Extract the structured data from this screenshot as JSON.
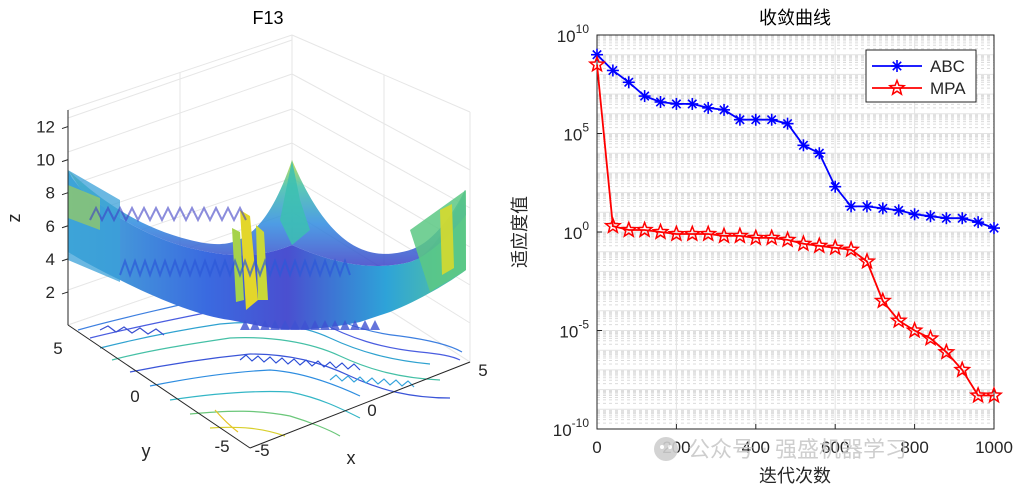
{
  "watermark": "公众号 · 强盛机器学习",
  "chart_data": [
    {
      "type": "surface3d",
      "title": "F13",
      "xlabel": "x",
      "ylabel": "y",
      "zlabel": "z",
      "x_ticks": [
        "-5",
        "0",
        "5"
      ],
      "y_ticks": [
        "5",
        "0",
        "-5"
      ],
      "z_ticks": [
        "2",
        "4",
        "6",
        "8",
        "10",
        "12"
      ],
      "xlim": [
        -5,
        5
      ],
      "ylim": [
        -5,
        5
      ],
      "zlim": [
        0,
        13
      ],
      "colormap": "parula",
      "contour_projection": true
    },
    {
      "type": "line",
      "title": "收敛曲线",
      "xlabel": "迭代次数",
      "ylabel": "适应度值",
      "xlim": [
        0,
        1000
      ],
      "ylim_log10": [
        -10,
        10
      ],
      "x_ticks": [
        "0",
        "200",
        "400",
        "600",
        "800",
        "1000"
      ],
      "y_ticks": [
        {
          "exp": 10,
          "label": "10",
          "sup": "10"
        },
        {
          "exp": 5,
          "label": "10",
          "sup": "5"
        },
        {
          "exp": 0,
          "label": "10",
          "sup": "0"
        },
        {
          "exp": -5,
          "label": "10",
          "sup": "-5"
        },
        {
          "exp": -10,
          "label": "10",
          "sup": "-10"
        }
      ],
      "yscale": "log",
      "legend_position": "top-right",
      "x": [
        0,
        40,
        80,
        120,
        160,
        200,
        240,
        280,
        320,
        360,
        400,
        440,
        480,
        520,
        560,
        600,
        640,
        680,
        720,
        760,
        800,
        840,
        880,
        920,
        960,
        1000
      ],
      "series": [
        {
          "name": "ABC",
          "color": "#0000ff",
          "marker": "asterisk",
          "log10_values": [
            9.0,
            8.2,
            7.6,
            6.9,
            6.6,
            6.5,
            6.5,
            6.3,
            6.2,
            5.7,
            5.7,
            5.7,
            5.5,
            4.4,
            4.0,
            2.3,
            1.3,
            1.3,
            1.2,
            1.1,
            0.9,
            0.8,
            0.7,
            0.7,
            0.5,
            0.2
          ],
          "values": [
            1000000000.0,
            160000000.0,
            40000000.0,
            8000000.0,
            4000000.0,
            3200000.0,
            3200000.0,
            2000000.0,
            1600000.0,
            500000.0,
            500000.0,
            500000.0,
            320000.0,
            25000.0,
            10000.0,
            200,
            20,
            20,
            16,
            12.6,
            7.9,
            6.3,
            5,
            5,
            3.2,
            1.6
          ]
        },
        {
          "name": "MPA",
          "color": "#ff0000",
          "marker": "pentagram",
          "log10_values": [
            8.5,
            0.3,
            0.1,
            0.1,
            0.0,
            -0.1,
            -0.1,
            -0.1,
            -0.2,
            -0.2,
            -0.3,
            -0.3,
            -0.4,
            -0.6,
            -0.7,
            -0.8,
            -0.9,
            -1.5,
            -3.5,
            -4.5,
            -5.0,
            -5.4,
            -6.1,
            -7.0,
            -8.3,
            -8.3
          ],
          "values": [
            320000000.0,
            2,
            1.26,
            1.26,
            1,
            0.79,
            0.79,
            0.79,
            0.63,
            0.63,
            0.5,
            0.5,
            0.4,
            0.25,
            0.2,
            0.16,
            0.126,
            0.032,
            0.00032,
            3.2e-05,
            1e-05,
            4e-06,
            7.9e-07,
            1e-07,
            5e-09,
            5e-09
          ]
        }
      ]
    }
  ]
}
